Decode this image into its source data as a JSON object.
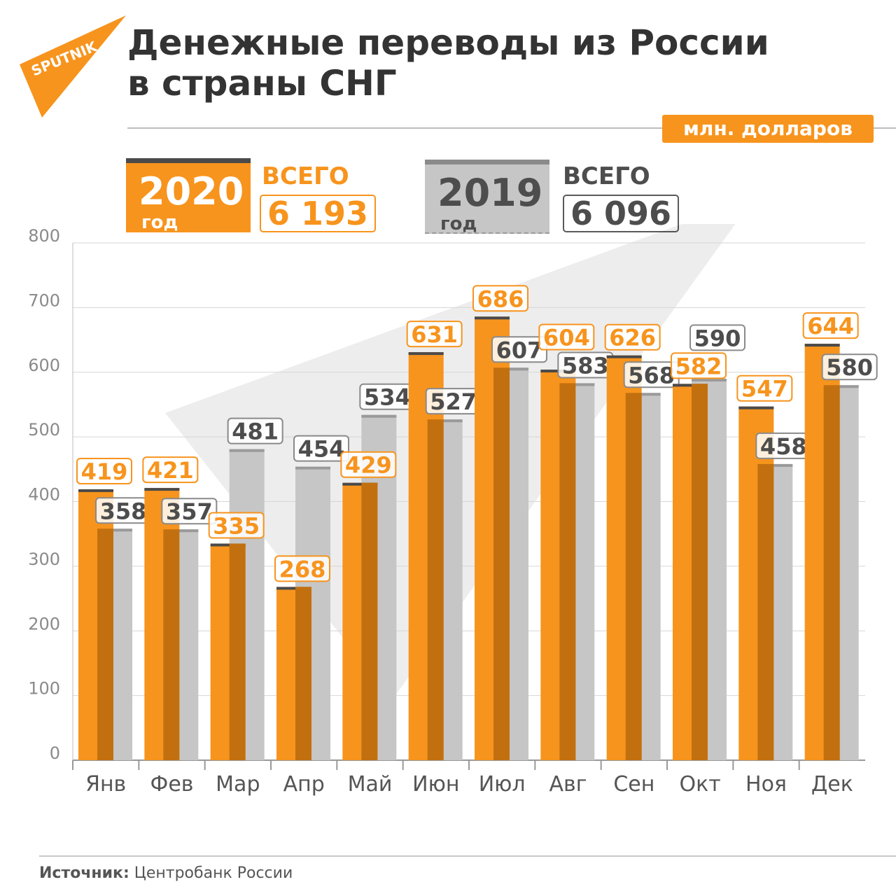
{
  "logo": {
    "text": "SPUTNIK"
  },
  "title": {
    "line1": "Денежные переводы из России",
    "line2": "в страны СНГ"
  },
  "unit": "млн. долларов",
  "legend": {
    "current": {
      "year": "2020",
      "suffix": "год",
      "total_label": "ВСЕГО",
      "total": "6 193"
    },
    "previous": {
      "year": "2019",
      "suffix": "год",
      "total_label": "ВСЕГО",
      "total": "6 096"
    }
  },
  "source": {
    "label": "Источник:",
    "text": "Центробанк России"
  },
  "chart_data": {
    "type": "bar",
    "title": "Денежные переводы из России в страны СНГ",
    "ylabel": "млн. долларов",
    "ylim": [
      0,
      800
    ],
    "yticks": [
      0,
      100,
      200,
      300,
      400,
      500,
      600,
      700,
      800
    ],
    "grid": true,
    "categories": [
      "Янв",
      "Фев",
      "Мар",
      "Апр",
      "Май",
      "Июн",
      "Июл",
      "Авг",
      "Сен",
      "Окт",
      "Ноя",
      "Дек"
    ],
    "series": [
      {
        "name": "2020",
        "color": "#f7941d",
        "values": [
          419,
          421,
          335,
          268,
          429,
          631,
          686,
          604,
          626,
          582,
          547,
          644
        ]
      },
      {
        "name": "2019",
        "color": "#c6c6c6",
        "values": [
          358,
          357,
          481,
          454,
          534,
          527,
          607,
          583,
          568,
          590,
          458,
          580
        ]
      }
    ]
  }
}
